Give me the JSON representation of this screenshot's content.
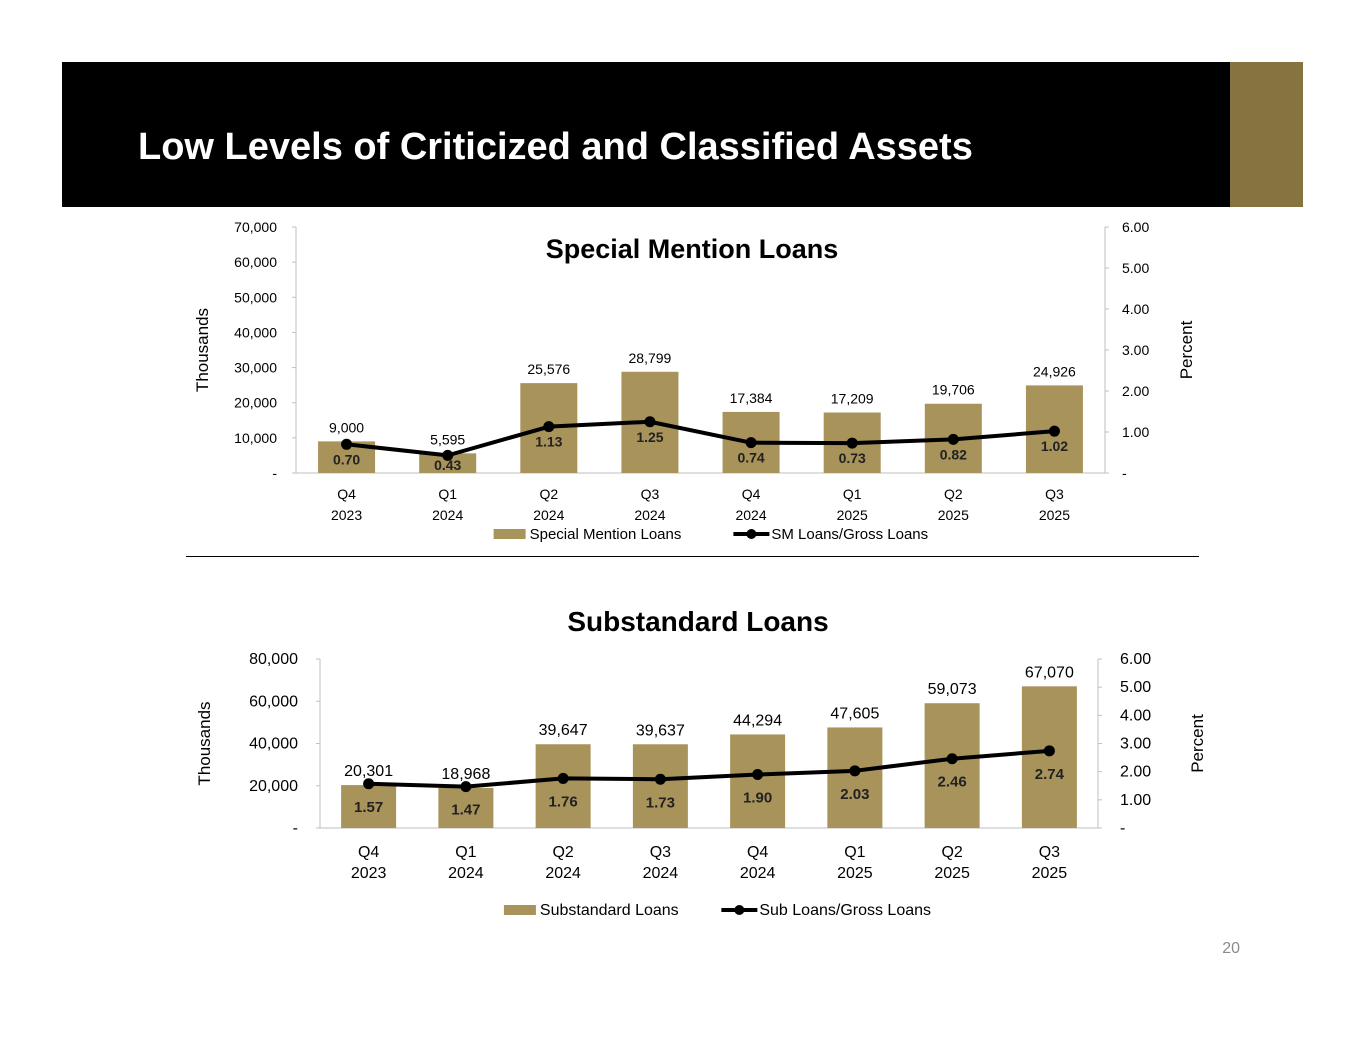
{
  "slide": {
    "title": "Low Levels of Criticized and Classified Assets",
    "page_number": "20"
  },
  "colors": {
    "banner": "#000000",
    "accent": "#85743f",
    "bar": "#a8935a",
    "line": "#000000"
  },
  "chart_data": [
    {
      "type": "bar+line",
      "title": "Special Mention Loans",
      "categories": [
        [
          "Q4",
          "2023"
        ],
        [
          "Q1",
          "2024"
        ],
        [
          "Q2",
          "2024"
        ],
        [
          "Q3",
          "2024"
        ],
        [
          "Q4",
          "2024"
        ],
        [
          "Q1",
          "2025"
        ],
        [
          "Q2",
          "2025"
        ],
        [
          "Q3",
          "2025"
        ]
      ],
      "bar_series": {
        "name": "Special Mention Loans",
        "values": [
          9000,
          5595,
          25576,
          28799,
          17384,
          17209,
          19706,
          24926
        ],
        "labels": [
          "9,000",
          "5,595",
          "25,576",
          "28,799",
          "17,384",
          "17,209",
          "19,706",
          "24,926"
        ]
      },
      "line_series": {
        "name": "SM Loans/Gross Loans",
        "values": [
          0.7,
          0.43,
          1.13,
          1.25,
          0.74,
          0.73,
          0.82,
          1.02
        ],
        "labels": [
          "0.70",
          "0.43",
          "1.13",
          "1.25",
          "0.74",
          "0.73",
          "0.82",
          "1.02"
        ]
      },
      "y_left": {
        "label": "Thousands",
        "min": 0,
        "max": 70000,
        "ticks": [
          0,
          10000,
          20000,
          30000,
          40000,
          50000,
          60000,
          70000
        ],
        "tick_labels": [
          "-",
          "10,000",
          "20,000",
          "30,000",
          "40,000",
          "50,000",
          "60,000",
          "70,000"
        ]
      },
      "y_right": {
        "label": "Percent",
        "min": 0,
        "max": 6,
        "ticks": [
          0,
          1,
          2,
          3,
          4,
          5,
          6
        ],
        "tick_labels": [
          "-",
          "1.00",
          "2.00",
          "3.00",
          "4.00",
          "5.00",
          "6.00"
        ]
      },
      "legend_position": "bottom"
    },
    {
      "type": "bar+line",
      "title": "Substandard Loans",
      "categories": [
        [
          "Q4",
          "2023"
        ],
        [
          "Q1",
          "2024"
        ],
        [
          "Q2",
          "2024"
        ],
        [
          "Q3",
          "2024"
        ],
        [
          "Q4",
          "2024"
        ],
        [
          "Q1",
          "2025"
        ],
        [
          "Q2",
          "2025"
        ],
        [
          "Q3",
          "2025"
        ]
      ],
      "bar_series": {
        "name": "Substandard Loans",
        "values": [
          20301,
          18968,
          39647,
          39637,
          44294,
          47605,
          59073,
          67070
        ],
        "labels": [
          "20,301",
          "18,968",
          "39,647",
          "39,637",
          "44,294",
          "47,605",
          "59,073",
          "67,070"
        ]
      },
      "line_series": {
        "name": "Sub Loans/Gross Loans",
        "values": [
          1.57,
          1.47,
          1.76,
          1.73,
          1.9,
          2.03,
          2.46,
          2.74
        ],
        "labels": [
          "1.57",
          "1.47",
          "1.76",
          "1.73",
          "1.90",
          "2.03",
          "2.46",
          "2.74"
        ]
      },
      "y_left": {
        "label": "Thousands",
        "min": 0,
        "max": 80000,
        "ticks": [
          0,
          20000,
          40000,
          60000,
          80000
        ],
        "tick_labels": [
          "-",
          "20,000",
          "40,000",
          "60,000",
          "80,000"
        ]
      },
      "y_right": {
        "label": "Percent",
        "min": 0,
        "max": 6,
        "ticks": [
          0,
          1,
          2,
          3,
          4,
          5,
          6
        ],
        "tick_labels": [
          "-",
          "1.00",
          "2.00",
          "3.00",
          "4.00",
          "5.00",
          "6.00"
        ]
      },
      "legend_position": "bottom"
    }
  ]
}
